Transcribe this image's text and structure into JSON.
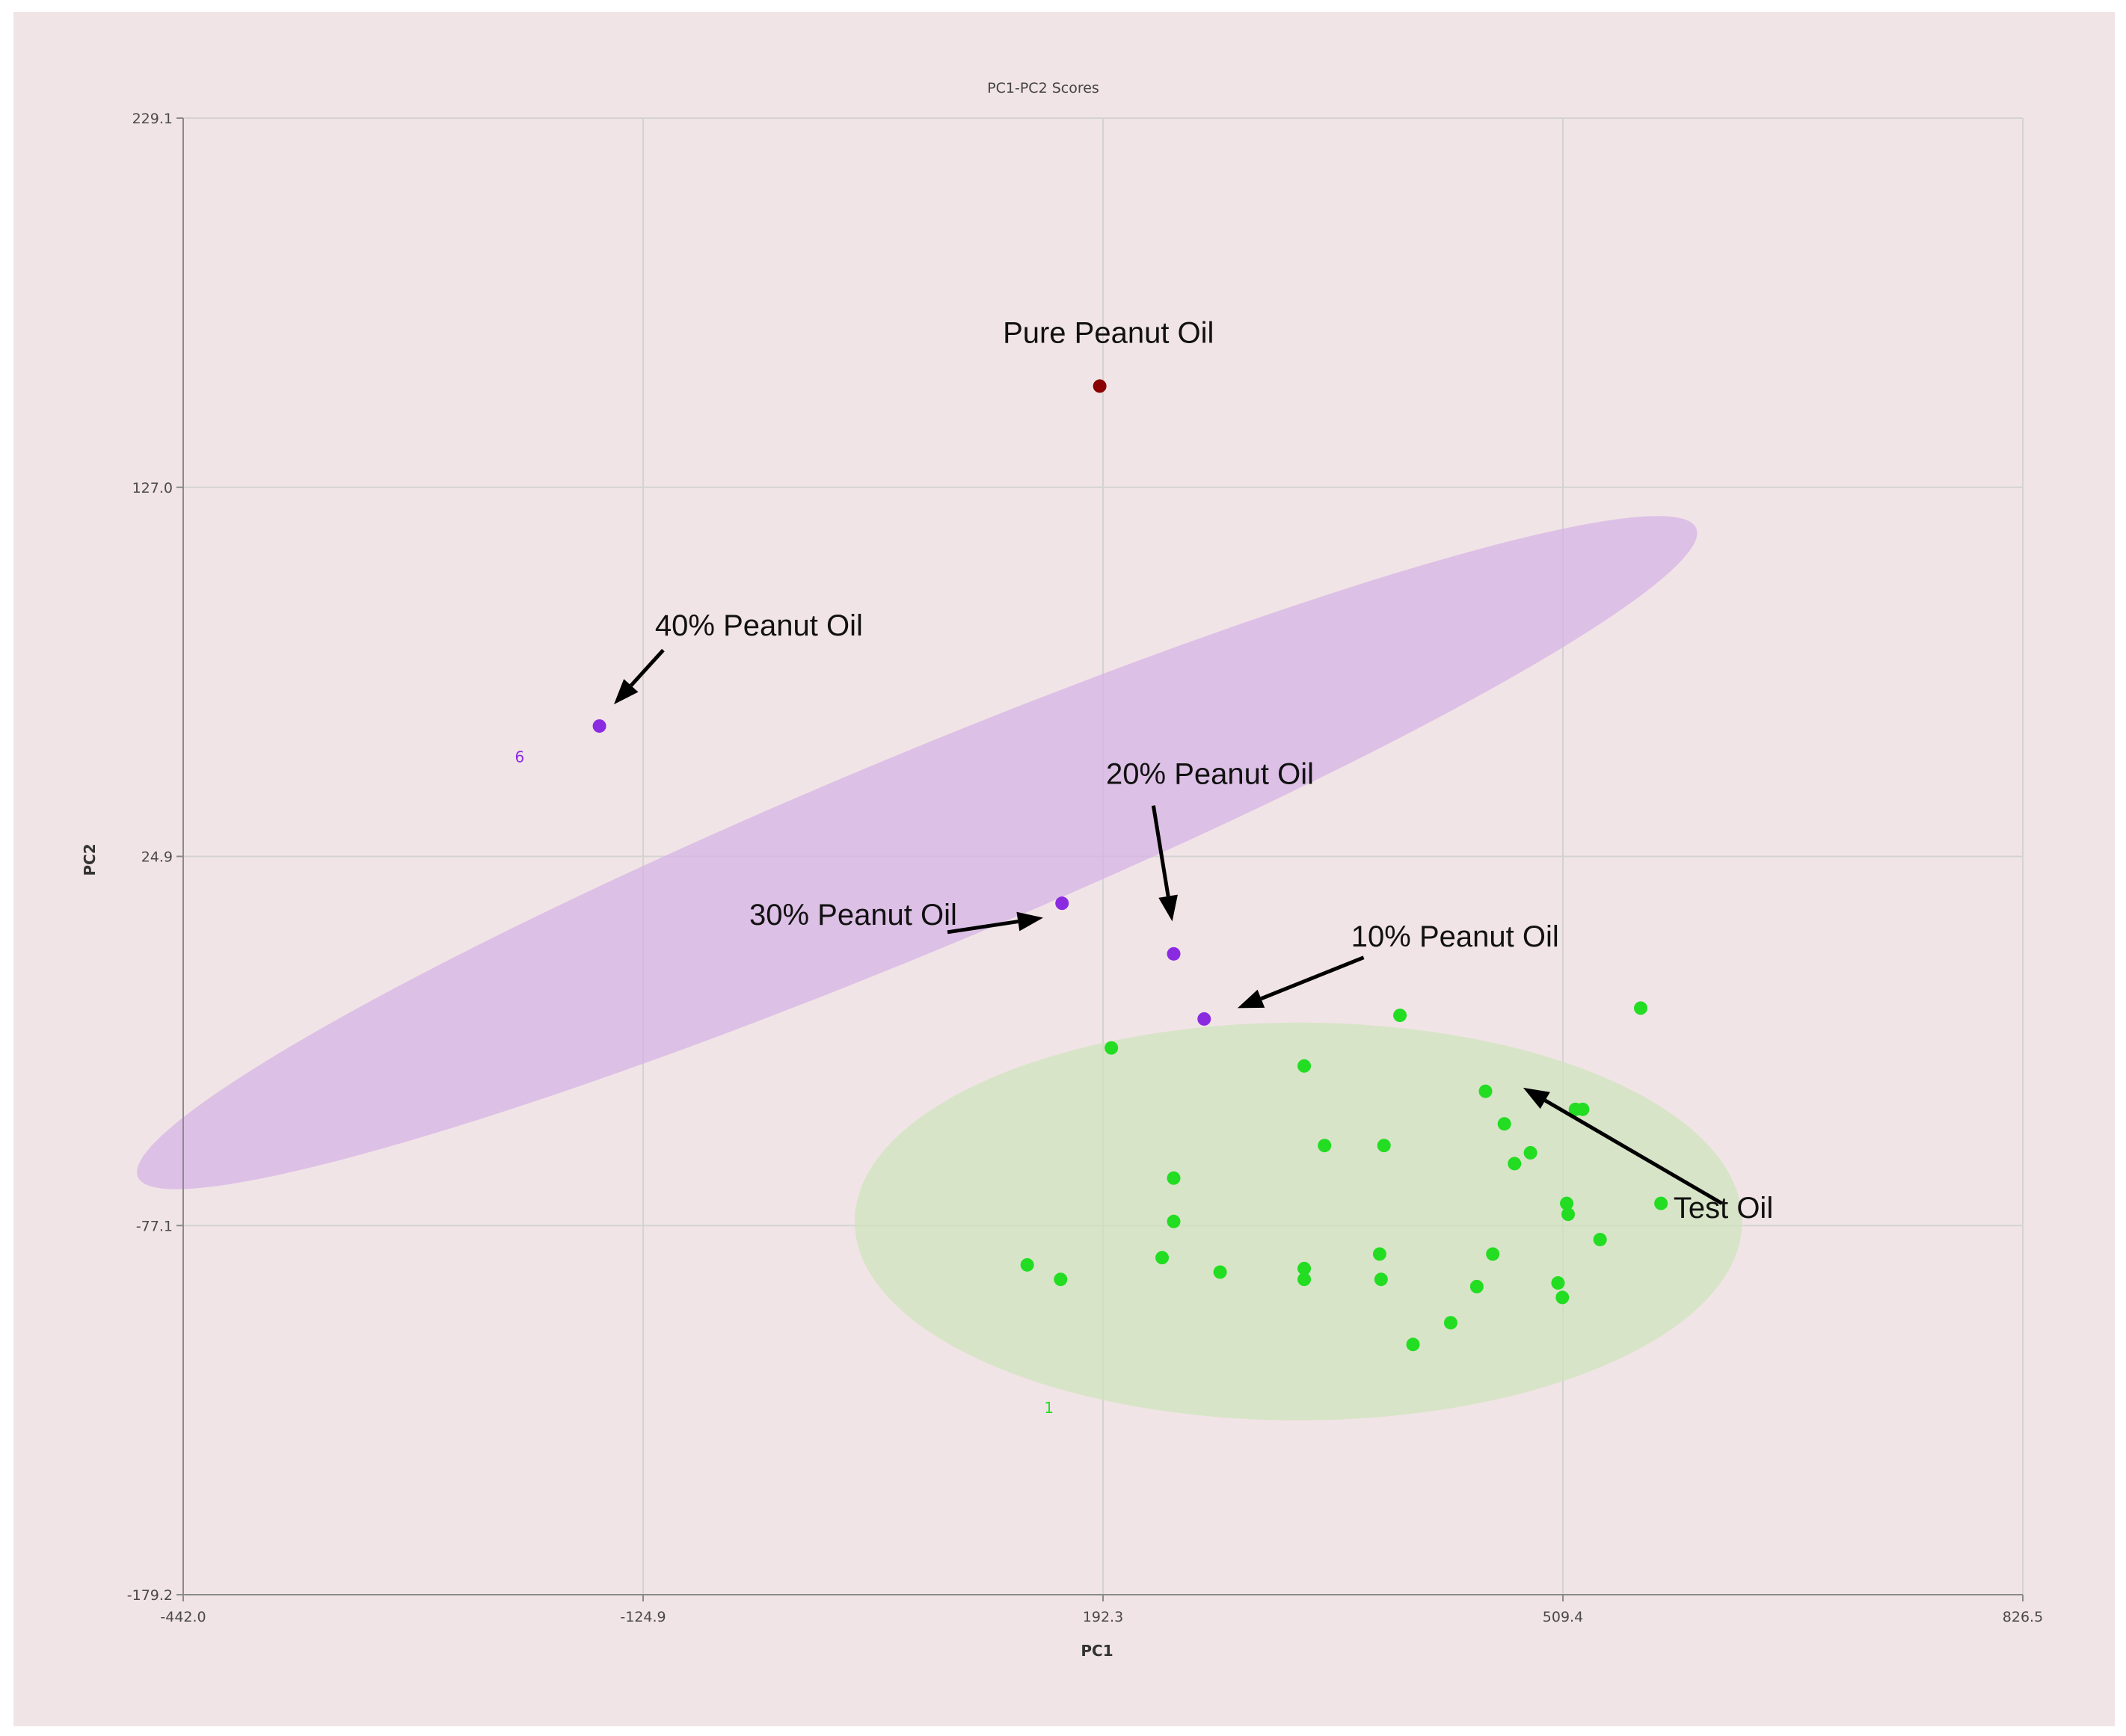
{
  "chart_data": {
    "type": "scatter",
    "title": "PC1-PC2 Scores",
    "xlabel": "PC1",
    "ylabel": "PC2",
    "xlim": [
      -442.0,
      826.5
    ],
    "ylim": [
      -179.2,
      229.1
    ],
    "x_ticks": [
      "-442.0",
      "-124.9",
      "192.3",
      "509.4",
      "826.5"
    ],
    "y_ticks": [
      "229.1",
      "127.0",
      "24.9",
      "-77.1",
      "-179.2"
    ],
    "grid": true,
    "background": "#f1e4e6",
    "series": [
      {
        "color": "#8b0000",
        "points": [
          [
            190,
            155
          ]
        ]
      },
      {
        "color": "#8a2be2",
        "points": [
          [
            -155,
            61
          ],
          [
            164,
            12
          ],
          [
            241,
            -2
          ],
          [
            262,
            -20
          ]
        ]
      },
      {
        "color": "#22dd22",
        "points": [
          [
            198,
            -28
          ],
          [
            331,
            -33
          ],
          [
            397,
            -19
          ],
          [
            456,
            -40
          ],
          [
            518,
            -45
          ],
          [
            563,
            -17
          ],
          [
            577,
            -71
          ],
          [
            469,
            -49
          ],
          [
            487,
            -57
          ],
          [
            476,
            -60
          ],
          [
            523,
            -45
          ],
          [
            513,
            -74
          ],
          [
            535,
            -81
          ],
          [
            461,
            -85
          ],
          [
            450,
            -94
          ],
          [
            406,
            -110
          ],
          [
            383,
            -85
          ],
          [
            384,
            -92
          ],
          [
            432,
            -104
          ],
          [
            345,
            -55
          ],
          [
            386,
            -55
          ],
          [
            241,
            -64
          ],
          [
            241,
            -76
          ],
          [
            233,
            -86
          ],
          [
            273,
            -90
          ],
          [
            140,
            -88
          ],
          [
            163,
            -92
          ],
          [
            331,
            -89
          ],
          [
            331,
            -92
          ],
          [
            509,
            -97
          ],
          [
            512,
            -71
          ],
          [
            506,
            -93
          ]
        ]
      }
    ],
    "point_labels": [
      {
        "text": "6",
        "x": -210,
        "y": 51,
        "color": "#8a2be2"
      },
      {
        "text": "1",
        "x": 155,
        "y": -129,
        "color": "#22dd22"
      }
    ],
    "ellipses": [
      {
        "color": "#d6b2e6",
        "cx": 64,
        "cy": 26,
        "rx": 582,
        "ry": 27,
        "angle_deg": -22.6
      },
      {
        "color": "#cfe3bd",
        "cx": 327,
        "cy": -76,
        "rx": 306,
        "ry": 55,
        "angle_deg": 0
      }
    ],
    "annotations": [
      {
        "text": "Pure Peanut Oil",
        "x": 196,
        "y": 167
      },
      {
        "text": "40% Peanut Oil",
        "x": -45,
        "y": 86,
        "arrow_from": [
          -111,
          82
        ],
        "arrow_to": [
          -145,
          67
        ]
      },
      {
        "text": "20% Peanut Oil",
        "x": 266,
        "y": 45,
        "arrow_from": [
          227,
          39
        ],
        "arrow_to": [
          240,
          7
        ]
      },
      {
        "text": "30% Peanut Oil",
        "x": 20,
        "y": 6,
        "arrow_from": [
          85,
          4
        ],
        "arrow_to": [
          151,
          8
        ]
      },
      {
        "text": "10% Peanut Oil",
        "x": 435,
        "y": 0,
        "arrow_from": [
          372,
          -3
        ],
        "arrow_to": [
          285,
          -17
        ]
      },
      {
        "text": "Test Oil",
        "x": 620,
        "y": -75,
        "arrow_from": [
          619,
          -71
        ],
        "arrow_to": [
          482,
          -39
        ]
      }
    ]
  }
}
